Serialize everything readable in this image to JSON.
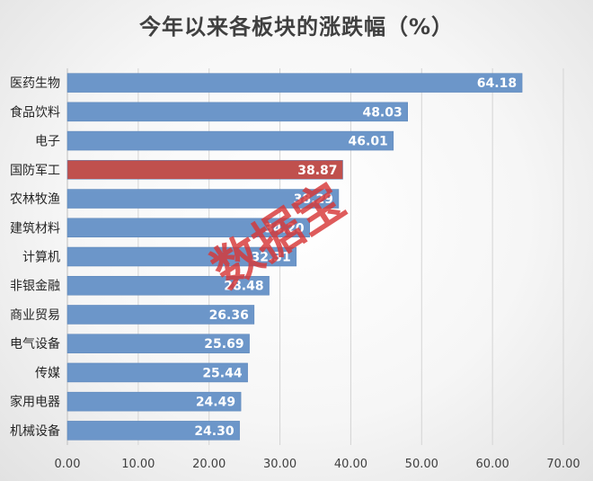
{
  "chart_data": {
    "type": "bar",
    "orientation": "horizontal",
    "title": "今年以来各板块的涨跌幅（%）",
    "categories": [
      "医药生物",
      "食品饮料",
      "电子",
      "国防军工",
      "农林牧渔",
      "建筑材料",
      "计算机",
      "非银金融",
      "商业贸易",
      "电气设备",
      "传媒",
      "家用电器",
      "机械设备"
    ],
    "values": [
      64.18,
      48.03,
      46.01,
      38.87,
      38.29,
      34.2,
      32.31,
      28.48,
      26.36,
      25.69,
      25.44,
      24.49,
      24.3
    ],
    "value_labels": [
      "64.18",
      "48.03",
      "46.01",
      "38.87",
      "38.29",
      "34.20",
      "32.31",
      "28.48",
      "26.36",
      "25.69",
      "25.44",
      "24.49",
      "24.30"
    ],
    "xlim": [
      0,
      70
    ],
    "xticks": [
      "0.00",
      "10.00",
      "20.00",
      "30.00",
      "40.00",
      "50.00",
      "60.00",
      "70.00"
    ],
    "grid": "vertical",
    "bar_color": "#6c96c9",
    "highlight_category": "国防军工",
    "highlight_color": "#c0504d"
  },
  "watermark": "数据宝"
}
